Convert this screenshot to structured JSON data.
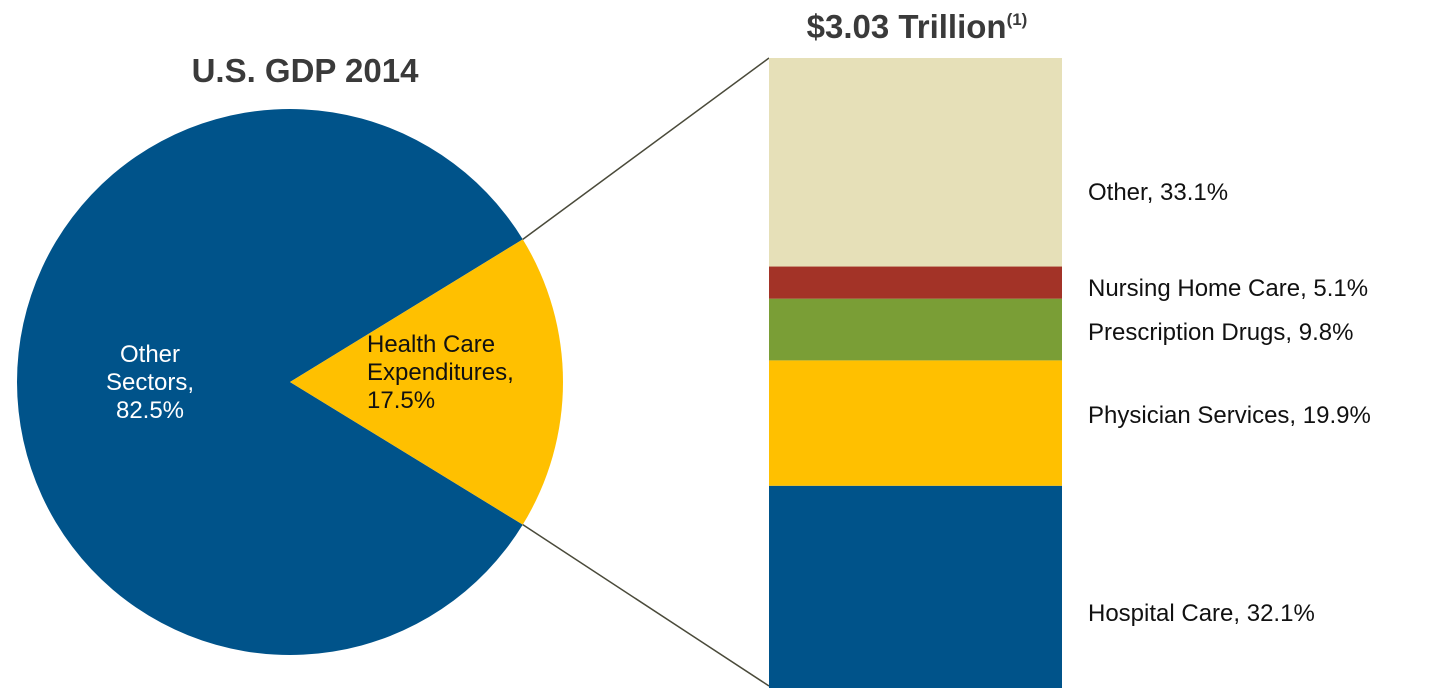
{
  "chart_data": [
    {
      "type": "pie",
      "title": "U.S. GDP 2014",
      "slices": [
        {
          "label_lines": [
            "Other",
            "Sectors,",
            "82.5%"
          ],
          "value": 82.5,
          "color": "#00538a",
          "label_color": "#ffffff"
        },
        {
          "label_lines": [
            "Health Care",
            "Expenditures,",
            "17.5%"
          ],
          "value": 17.5,
          "color": "#ffc000",
          "label_color": "#111111"
        }
      ]
    },
    {
      "type": "bar",
      "stacked": true,
      "title": "$3.03 Trillion",
      "title_superscript": "(1)",
      "total": 3.03,
      "units": "Trillion",
      "segments_bottom_to_top": [
        {
          "label": "Hospital Care, 32.1%",
          "value": 32.1,
          "color": "#00538a"
        },
        {
          "label": "Physician Services, 19.9%",
          "value": 19.9,
          "color": "#ffc000"
        },
        {
          "label": "Prescription Drugs, 9.8%",
          "value": 9.8,
          "color": "#7a9e36"
        },
        {
          "label": "Nursing Home Care, 5.1%",
          "value": 5.1,
          "color": "#a33327"
        },
        {
          "label": "Other, 33.1%",
          "value": 33.1,
          "color": "#e6e0b8"
        }
      ]
    }
  ],
  "connector_color": "#4a4a3a"
}
